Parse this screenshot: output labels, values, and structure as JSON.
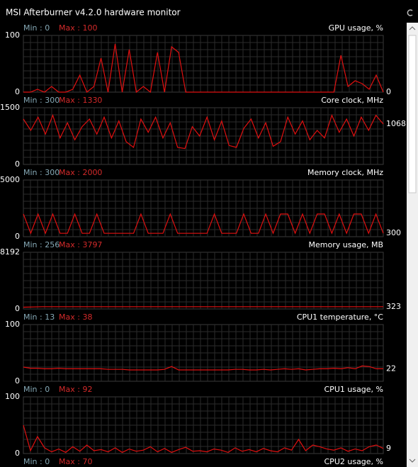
{
  "window": {
    "title": "MSI Afterburner v4.2.0 hardware monitor"
  },
  "panels": [
    {
      "min_label": "Min : 0",
      "max_label": "Max : 100",
      "name": "GPU usage, %",
      "ylim": [
        0,
        100
      ],
      "current": 0,
      "values": [
        0,
        0,
        5,
        0,
        10,
        0,
        0,
        5,
        30,
        0,
        10,
        60,
        0,
        85,
        0,
        75,
        0,
        10,
        0,
        70,
        0,
        80,
        70,
        0,
        0,
        0,
        0,
        0,
        0,
        0,
        0,
        0,
        0,
        0,
        0,
        0,
        0,
        0,
        0,
        0,
        0,
        0,
        0,
        0,
        0,
        65,
        10,
        20,
        15,
        5,
        30,
        0
      ]
    },
    {
      "min_label": "Min : 300",
      "max_label": "Max : 1330",
      "name": "Core clock, MHz",
      "ylim": [
        0,
        1500
      ],
      "current": 1068,
      "values": [
        1200,
        900,
        1250,
        800,
        1300,
        700,
        1100,
        650,
        1000,
        1200,
        800,
        1250,
        700,
        1150,
        600,
        450,
        1200,
        850,
        1250,
        700,
        1100,
        450,
        420,
        1000,
        750,
        1250,
        650,
        1150,
        500,
        450,
        950,
        1200,
        700,
        1100,
        480,
        600,
        1250,
        800,
        1150,
        650,
        900,
        700,
        1300,
        850,
        1200,
        750,
        1250,
        900,
        1300,
        1068
      ]
    },
    {
      "min_label": "Min : 300",
      "max_label": "Max : 2000",
      "name": "Memory clock, MHz",
      "ylim": [
        0,
        5000
      ],
      "current": 300,
      "values": [
        2000,
        300,
        2000,
        300,
        2000,
        300,
        300,
        2000,
        300,
        300,
        2000,
        300,
        300,
        300,
        300,
        300,
        2000,
        300,
        300,
        300,
        2000,
        300,
        300,
        300,
        300,
        300,
        2000,
        300,
        300,
        300,
        2000,
        300,
        300,
        2000,
        300,
        2000,
        2000,
        300,
        2000,
        300,
        2000,
        2000,
        300,
        2000,
        300,
        2000,
        2000,
        300,
        2000,
        300
      ]
    },
    {
      "min_label": "Min : 256",
      "max_label": "Max : 3797",
      "name": "Memory usage, MB",
      "ylim": [
        0,
        8192
      ],
      "current": 323,
      "values": [
        256,
        323,
        323,
        323,
        323,
        323,
        323,
        323,
        323,
        323,
        323,
        323,
        323,
        323,
        323,
        323,
        323,
        323,
        323,
        323
      ]
    },
    {
      "min_label": "Min : 13",
      "max_label": "Max : 38",
      "name": "CPU1 temperature, °C",
      "ylim": [
        0,
        100
      ],
      "current": 22,
      "values": [
        25,
        23,
        23,
        22,
        22,
        23,
        22,
        22,
        22,
        22,
        22,
        22,
        21,
        21,
        21,
        20,
        20,
        20,
        20,
        20,
        21,
        26,
        20,
        20,
        20,
        20,
        20,
        20,
        20,
        20,
        21,
        21,
        20,
        20,
        21,
        20,
        21,
        22,
        21,
        22,
        20,
        21,
        22,
        22,
        23,
        22,
        24,
        22,
        27,
        26,
        22,
        22
      ]
    },
    {
      "min_label": "Min : 0",
      "max_label": "Max : 92",
      "name": "CPU1 usage, %",
      "ylim": [
        0,
        100
      ],
      "current": 9,
      "values": [
        50,
        5,
        30,
        10,
        3,
        8,
        2,
        12,
        4,
        15,
        5,
        7,
        3,
        10,
        2,
        8,
        4,
        6,
        12,
        3,
        9,
        2,
        7,
        11,
        4,
        5,
        3,
        8,
        6,
        2,
        10,
        4,
        7,
        3,
        9,
        5,
        3,
        10,
        6,
        25,
        5,
        15,
        12,
        8,
        6,
        10,
        4,
        8,
        5,
        12,
        15,
        9
      ]
    },
    {
      "min_label": "Min : 0",
      "max_label": "Max : 70",
      "name": "CPU2 usage, %"
    }
  ]
}
